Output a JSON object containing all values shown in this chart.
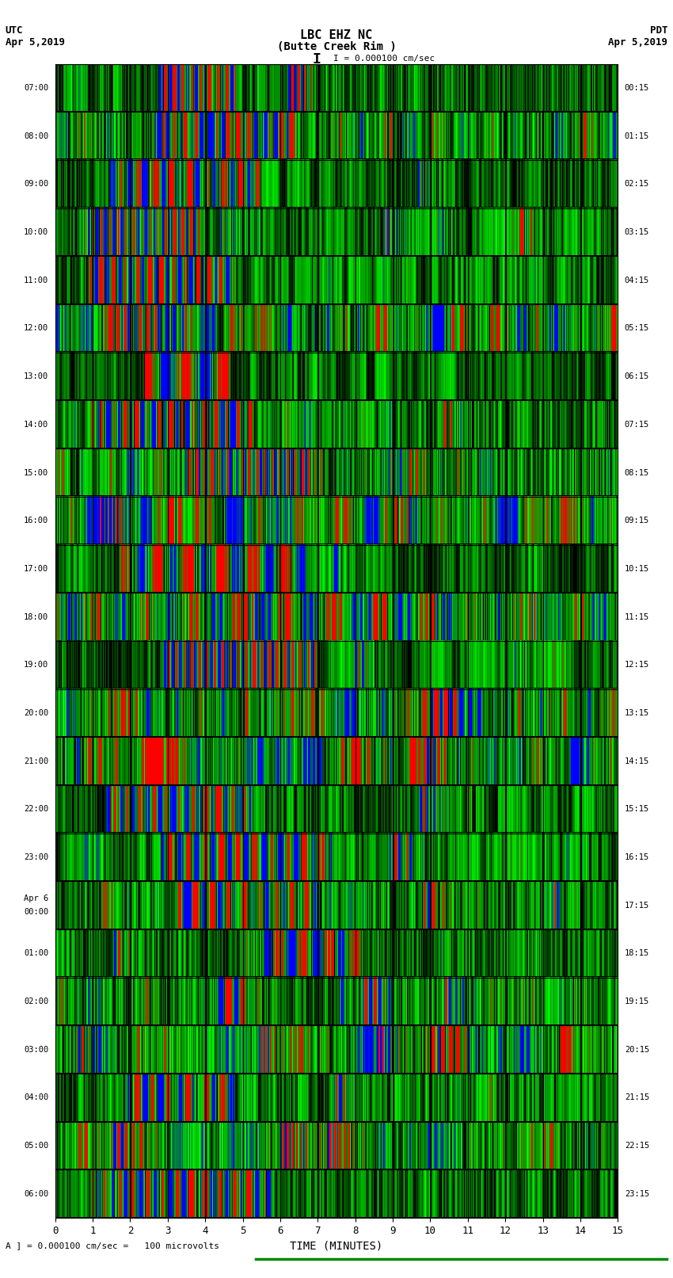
{
  "title_line1": "LBC EHZ NC",
  "title_line2": "(Butte Creek Rim )",
  "scale_text": "I = 0.000100 cm/sec",
  "utc_label": "UTC",
  "utc_date": "Apr 5,2019",
  "pdt_label": "PDT",
  "pdt_date": "Apr 5,2019",
  "xlabel": "TIME (MINUTES)",
  "bottom_label": "A ] = 0.000100 cm/sec =   100 microvolts",
  "xmin": 0,
  "xmax": 15,
  "left_times": [
    "07:00",
    "08:00",
    "09:00",
    "10:00",
    "11:00",
    "12:00",
    "13:00",
    "14:00",
    "15:00",
    "16:00",
    "17:00",
    "18:00",
    "19:00",
    "20:00",
    "21:00",
    "22:00",
    "23:00",
    "Apr 6\n00:00",
    "01:00",
    "02:00",
    "03:00",
    "04:00",
    "05:00",
    "06:00"
  ],
  "right_times": [
    "00:15",
    "01:15",
    "02:15",
    "03:15",
    "04:15",
    "05:15",
    "06:15",
    "07:15",
    "08:15",
    "09:15",
    "10:15",
    "11:15",
    "12:15",
    "13:15",
    "14:15",
    "15:15",
    "16:15",
    "17:15",
    "18:15",
    "19:15",
    "20:15",
    "21:15",
    "22:15",
    "23:15"
  ],
  "num_rows": 24,
  "figure_bg": "#ffffff",
  "scale_line_color": "#008800"
}
